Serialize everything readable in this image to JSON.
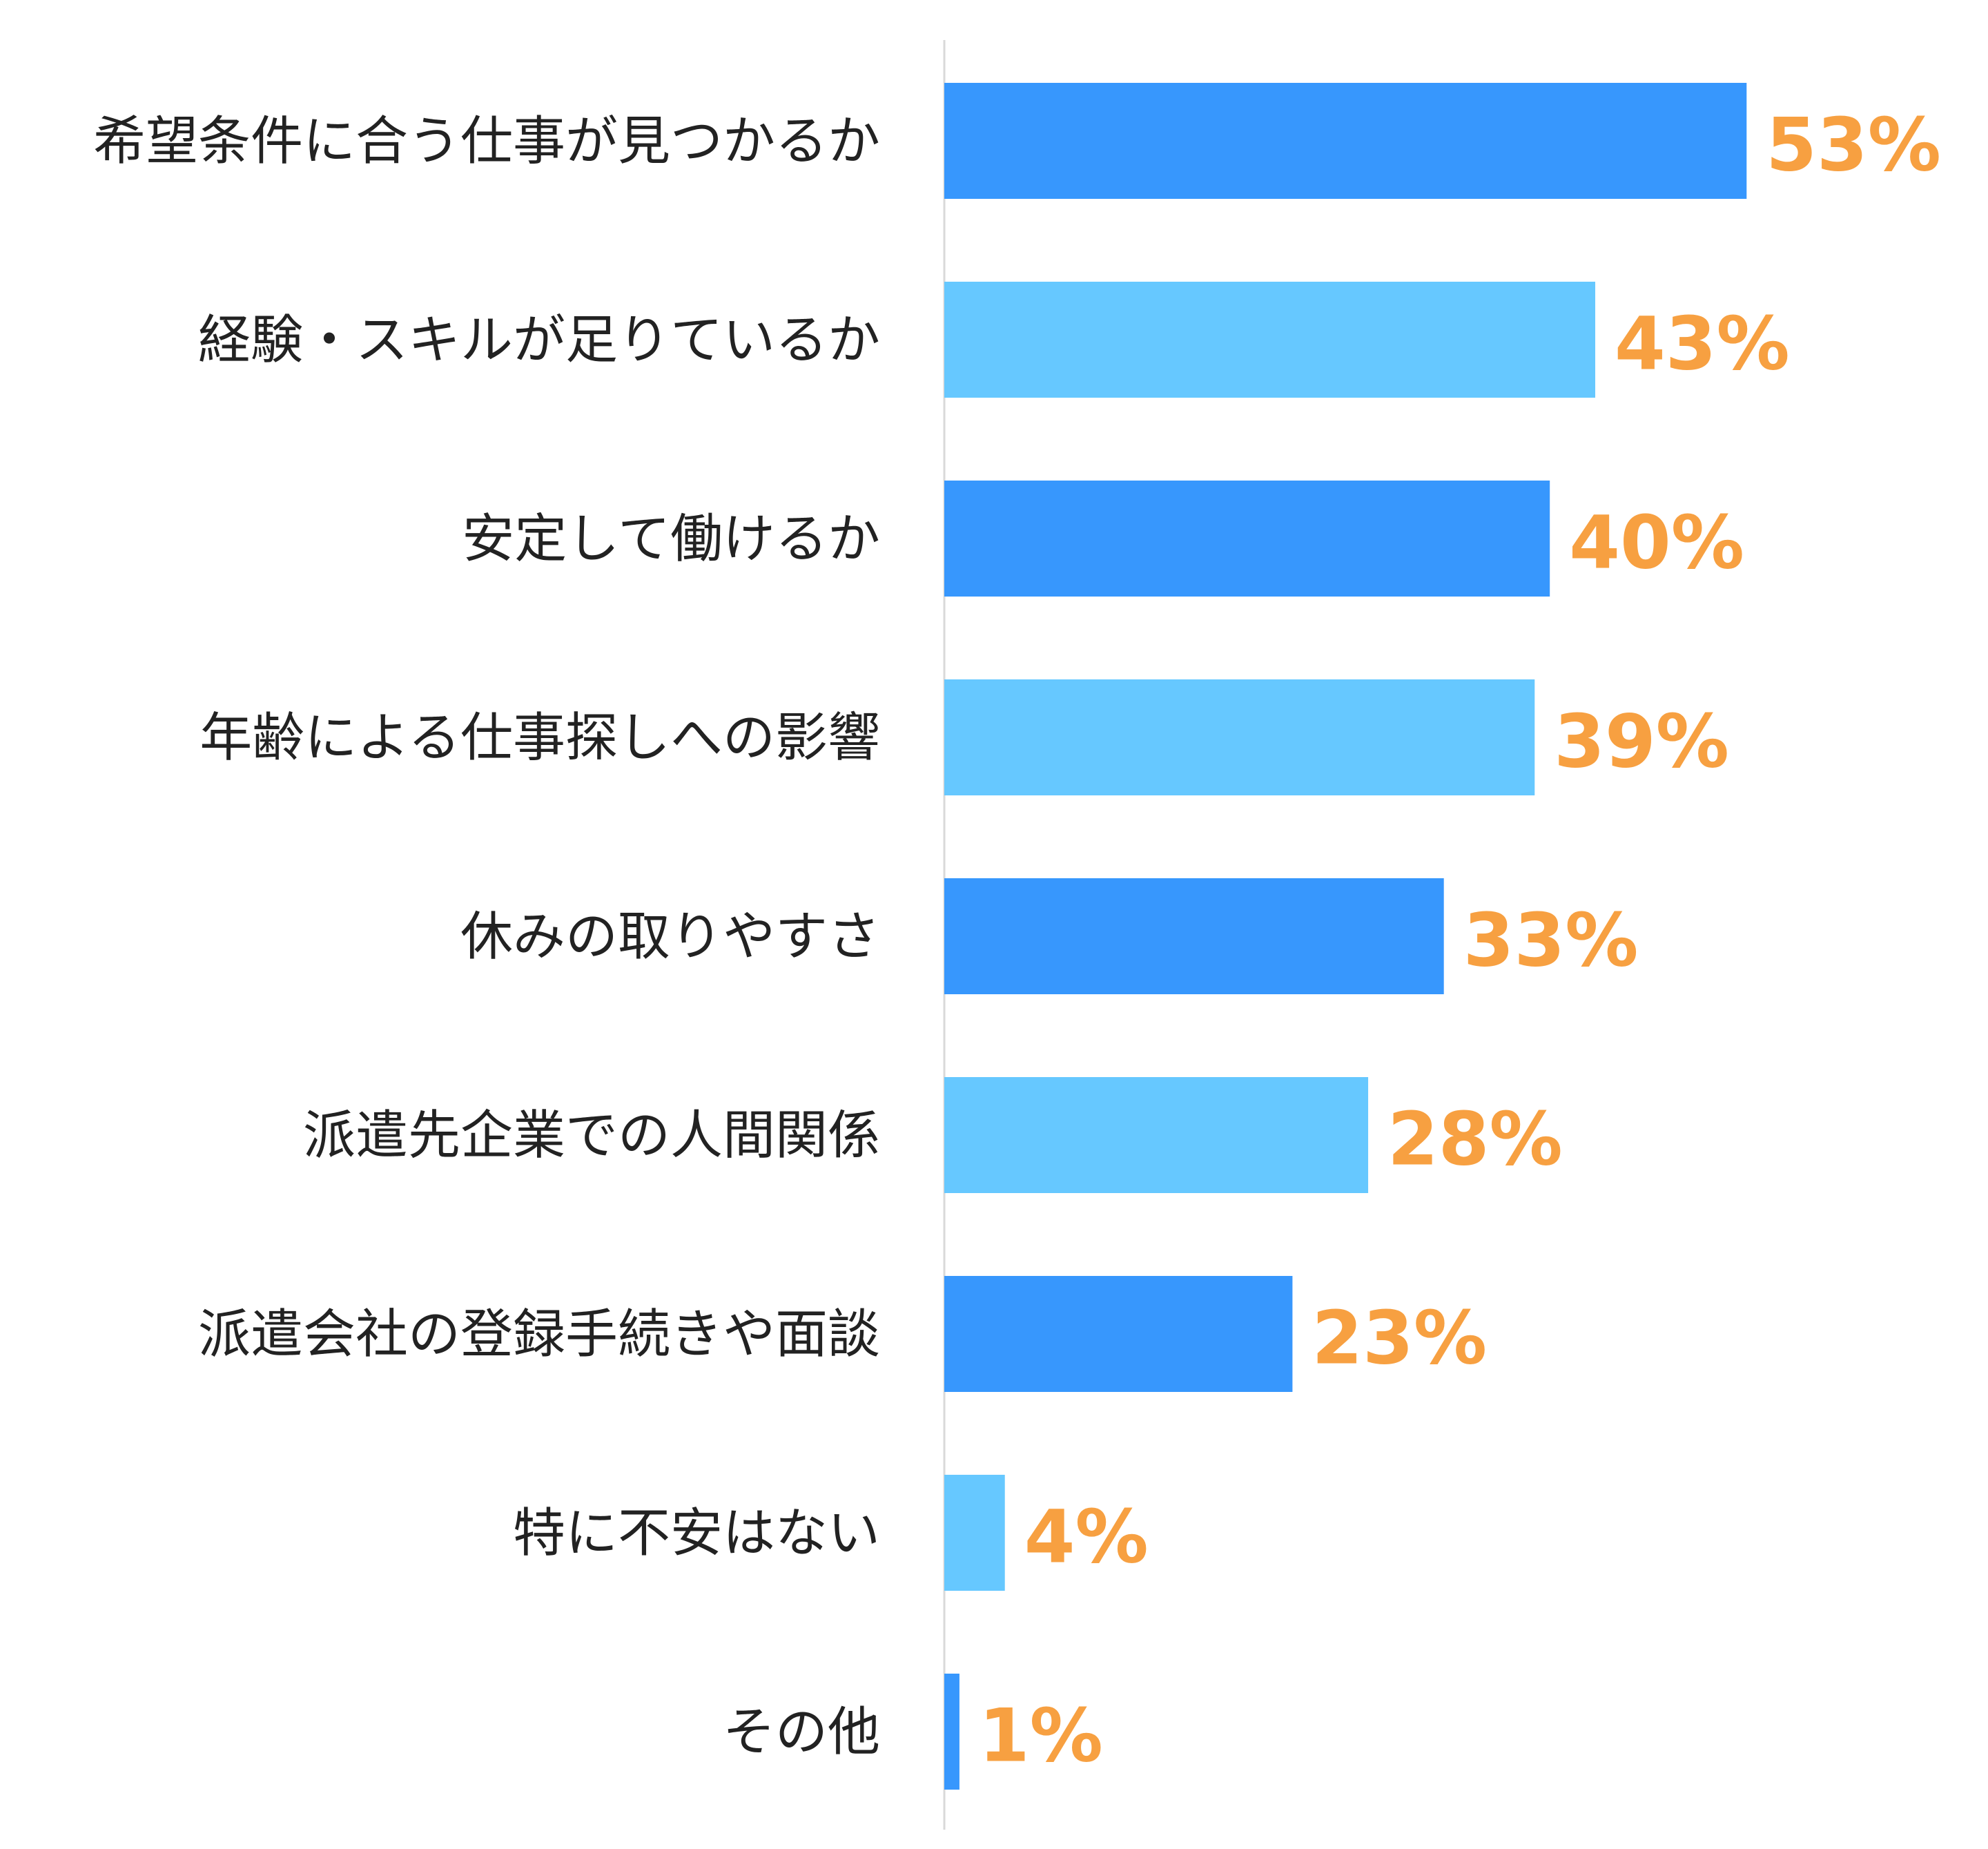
{
  "chart_data": {
    "type": "bar",
    "orientation": "horizontal",
    "categories": [
      "希望条件に合う仕事が見つかるか",
      "経験・スキルが足りているか",
      "安定して働けるか",
      "年齢による仕事探しへの影響",
      "休みの取りやすさ",
      "派遣先企業での人間関係",
      "派遣会社の登録手続きや面談",
      "特に不安はない",
      "その他"
    ],
    "values": [
      53,
      43,
      40,
      39,
      33,
      28,
      23,
      4,
      1
    ],
    "value_labels": [
      "53%",
      "43%",
      "40%",
      "39%",
      "33%",
      "28%",
      "23%",
      "4%",
      "1%"
    ],
    "unit": "%",
    "xlim": [
      0,
      100
    ],
    "grid": false,
    "legend": "none",
    "colors": {
      "bar_primary": "#3797fd",
      "bar_secondary": "#66c8ff",
      "value_label": "#f7a041",
      "axis": "#d9d9d9",
      "category_label": "#222222"
    }
  }
}
